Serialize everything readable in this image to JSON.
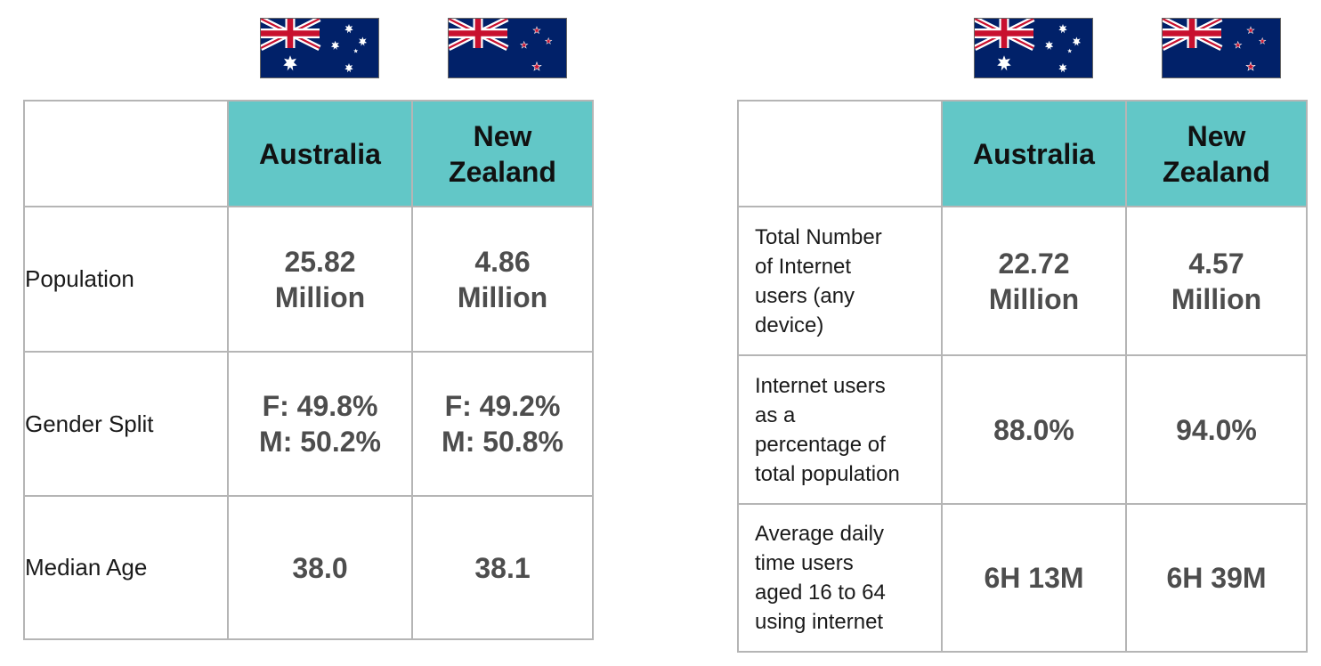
{
  "colors": {
    "header_bg": "#62c7c7",
    "value_text": "#4d4d4d",
    "border": "#b5b5b5"
  },
  "left_table": {
    "headers": [
      {
        "line1": "Australia",
        "line2": ""
      },
      {
        "line1": "New",
        "line2": "Zealand"
      }
    ],
    "rows": [
      {
        "label": "Population",
        "values": [
          {
            "line1": "25.82",
            "line2": "Million"
          },
          {
            "line1": "4.86",
            "line2": "Million"
          }
        ]
      },
      {
        "label": "Gender Split",
        "values": [
          {
            "line1": "F: 49.8%",
            "line2": "M: 50.2%"
          },
          {
            "line1": "F: 49.2%",
            "line2": "M: 50.8%"
          }
        ]
      },
      {
        "label": "Median Age",
        "values": [
          {
            "line1": "38.0",
            "line2": ""
          },
          {
            "line1": "38.1",
            "line2": ""
          }
        ]
      }
    ]
  },
  "right_table": {
    "headers": [
      {
        "line1": "Australia",
        "line2": ""
      },
      {
        "line1": "New",
        "line2": "Zealand"
      }
    ],
    "rows": [
      {
        "label_lines": [
          "Total Number",
          "of Internet",
          "users (any",
          "device)"
        ],
        "values": [
          {
            "line1": "22.72",
            "line2": "Million"
          },
          {
            "line1": "4.57",
            "line2": "Million"
          }
        ]
      },
      {
        "label_lines": [
          "Internet users",
          "as a",
          "percentage of",
          "total population"
        ],
        "values": [
          {
            "line1": "88.0%",
            "line2": ""
          },
          {
            "line1": "94.0%",
            "line2": ""
          }
        ]
      },
      {
        "label_lines": [
          "Average daily",
          "time users",
          "aged 16 to 64",
          "using internet"
        ],
        "values": [
          {
            "line1": "6H 13M",
            "line2": ""
          },
          {
            "line1": "6H 39M",
            "line2": ""
          }
        ]
      }
    ]
  },
  "flags": [
    {
      "icon": "australia-flag-icon"
    },
    {
      "icon": "new-zealand-flag-icon"
    },
    {
      "icon": "australia-flag-icon"
    },
    {
      "icon": "new-zealand-flag-icon"
    }
  ]
}
